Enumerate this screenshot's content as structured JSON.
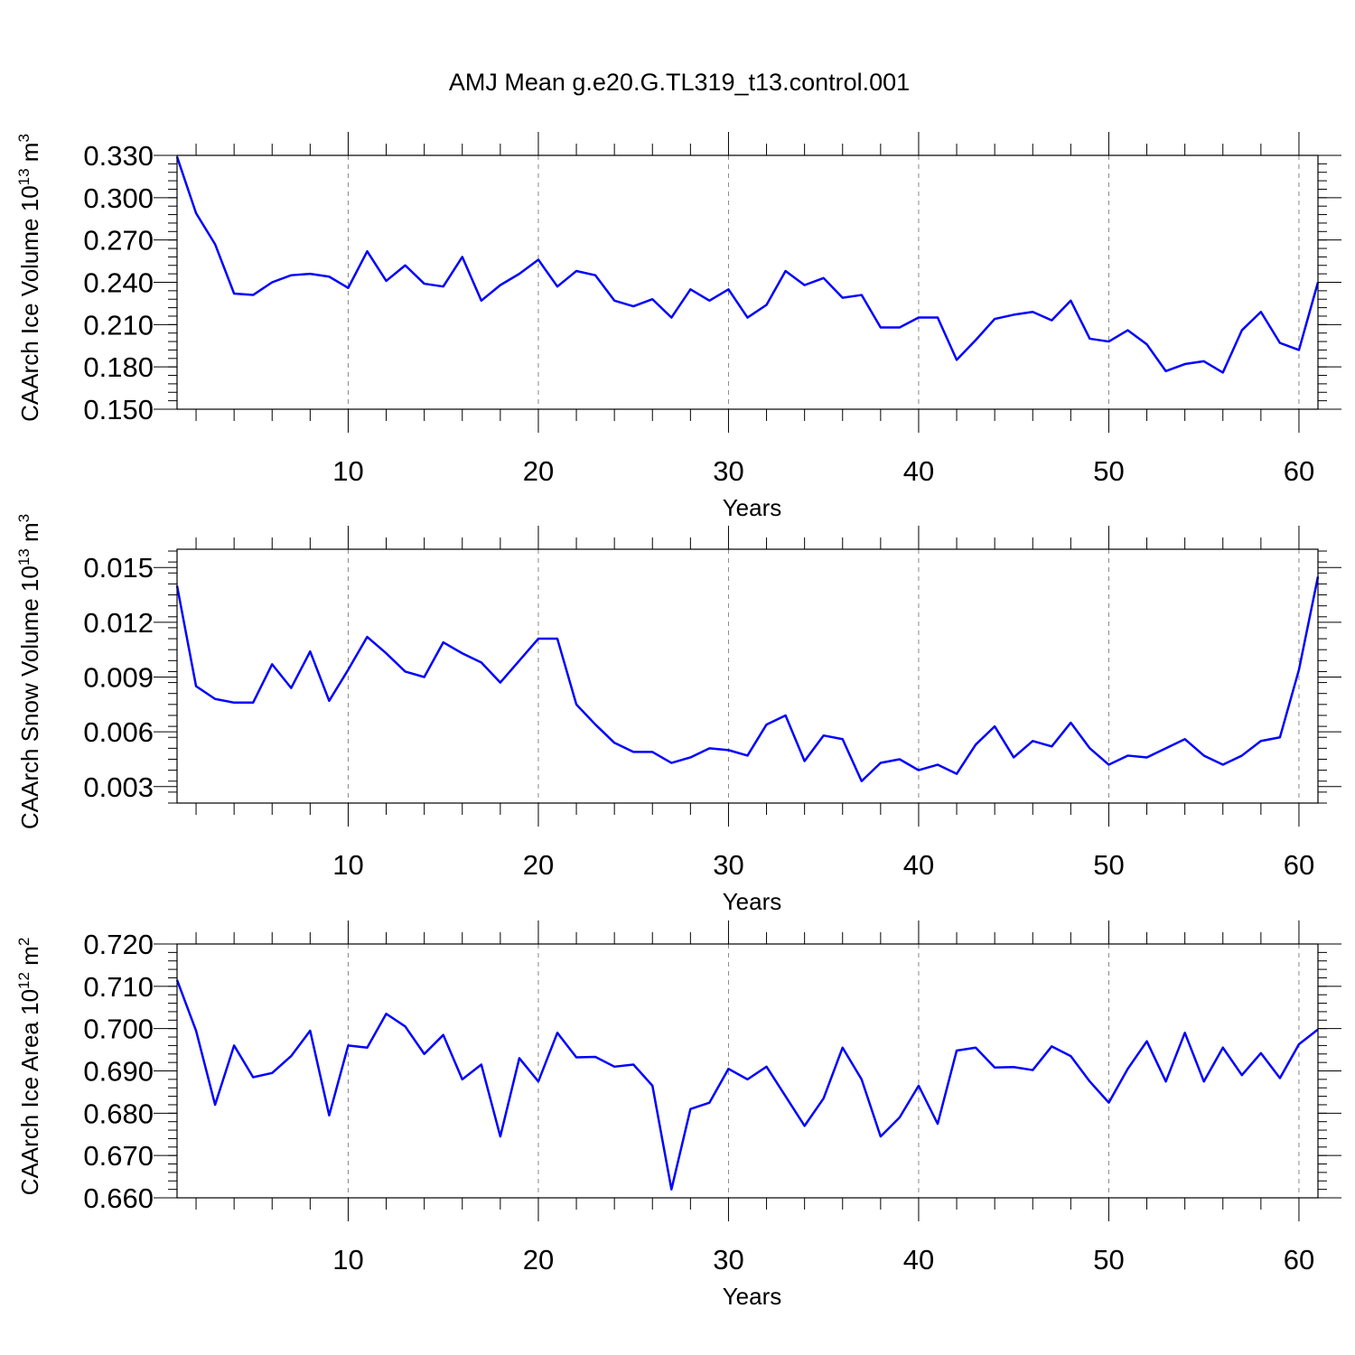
{
  "title": "AMJ Mean g.e20.G.TL319_t13.control.001",
  "chart_data": [
    {
      "type": "line",
      "ylabel": "CAArch Ice Volume 10",
      "ylabel_sup": "13",
      "ylabel_unit": "m",
      "ylabel_unit_sup": "3",
      "xlabel": "Years",
      "xlim": [
        1,
        61
      ],
      "ylim": [
        0.15,
        0.33
      ],
      "xticks": [
        10,
        20,
        30,
        40,
        50,
        60
      ],
      "yticks": [
        "0.150",
        "0.180",
        "0.210",
        "0.240",
        "0.270",
        "0.300",
        "0.330"
      ],
      "grid": "vertical dashed at major x ticks",
      "series": [
        {
          "color": "#0000ff",
          "x_start": 1,
          "values": [
            0.329,
            0.289,
            0.267,
            0.232,
            0.231,
            0.24,
            0.245,
            0.246,
            0.244,
            0.236,
            0.262,
            0.241,
            0.252,
            0.239,
            0.237,
            0.258,
            0.227,
            0.238,
            0.246,
            0.256,
            0.237,
            0.248,
            0.245,
            0.227,
            0.223,
            0.228,
            0.215,
            0.235,
            0.227,
            0.235,
            0.215,
            0.224,
            0.248,
            0.238,
            0.243,
            0.229,
            0.231,
            0.208,
            0.208,
            0.215,
            0.215,
            0.185,
            0.199,
            0.214,
            0.217,
            0.219,
            0.213,
            0.227,
            0.2,
            0.198,
            0.206,
            0.196,
            0.177,
            0.182,
            0.184,
            0.176,
            0.206,
            0.219,
            0.197,
            0.192,
            0.24
          ]
        }
      ]
    },
    {
      "type": "line",
      "ylabel": "CAArch Snow Volume 10",
      "ylabel_sup": "13",
      "ylabel_unit": "m",
      "ylabel_unit_sup": "3",
      "xlabel": "Years",
      "xlim": [
        1,
        61
      ],
      "ylim": [
        0.0021,
        0.016
      ],
      "xticks": [
        10,
        20,
        30,
        40,
        50,
        60
      ],
      "yticks": [
        "0.003",
        "0.006",
        "0.009",
        "0.012",
        "0.015"
      ],
      "grid": "vertical dashed at major x ticks",
      "series": [
        {
          "color": "#0000ff",
          "x_start": 1,
          "values": [
            0.014,
            0.0085,
            0.0078,
            0.0076,
            0.0076,
            0.0097,
            0.0084,
            0.0104,
            0.0077,
            0.0094,
            0.0112,
            0.0103,
            0.0093,
            0.009,
            0.0109,
            0.0103,
            0.0098,
            0.0087,
            0.0099,
            0.0111,
            0.0111,
            0.0075,
            0.0064,
            0.0054,
            0.0049,
            0.0049,
            0.0043,
            0.0046,
            0.0051,
            0.005,
            0.0047,
            0.0064,
            0.0069,
            0.0044,
            0.0058,
            0.0056,
            0.0033,
            0.0043,
            0.0045,
            0.0039,
            0.0042,
            0.0037,
            0.0053,
            0.0063,
            0.0046,
            0.0055,
            0.0052,
            0.0065,
            0.0051,
            0.0042,
            0.0047,
            0.0046,
            0.0051,
            0.0056,
            0.0047,
            0.0042,
            0.0047,
            0.0055,
            0.0057,
            0.0094,
            0.0145
          ]
        }
      ]
    },
    {
      "type": "line",
      "ylabel": "CAArch Ice Area 10",
      "ylabel_sup": "12",
      "ylabel_unit": "m",
      "ylabel_unit_sup": "2",
      "xlabel": "Years",
      "xlim": [
        1,
        61
      ],
      "ylim": [
        0.66,
        0.72
      ],
      "xticks": [
        10,
        20,
        30,
        40,
        50,
        60
      ],
      "yticks": [
        "0.660",
        "0.670",
        "0.680",
        "0.690",
        "0.700",
        "0.710",
        "0.720"
      ],
      "grid": "vertical dashed at major x ticks",
      "series": [
        {
          "color": "#0000ff",
          "x_start": 1,
          "values": [
            0.7115,
            0.6995,
            0.682,
            0.696,
            0.6885,
            0.6895,
            0.6935,
            0.6995,
            0.6795,
            0.696,
            0.6955,
            0.7035,
            0.7005,
            0.694,
            0.6985,
            0.688,
            0.6915,
            0.6745,
            0.693,
            0.6875,
            0.699,
            0.6932,
            0.6933,
            0.691,
            0.6915,
            0.6865,
            0.662,
            0.681,
            0.6825,
            0.6905,
            0.688,
            0.691,
            0.684,
            0.677,
            0.6835,
            0.6955,
            0.688,
            0.6745,
            0.679,
            0.6865,
            0.6775,
            0.6948,
            0.6955,
            0.6908,
            0.6909,
            0.6902,
            0.6958,
            0.6935,
            0.6875,
            0.6825,
            0.6905,
            0.697,
            0.6875,
            0.699,
            0.6875,
            0.6955,
            0.689,
            0.6942,
            0.6883,
            0.6963,
            0.6998
          ]
        }
      ]
    }
  ]
}
